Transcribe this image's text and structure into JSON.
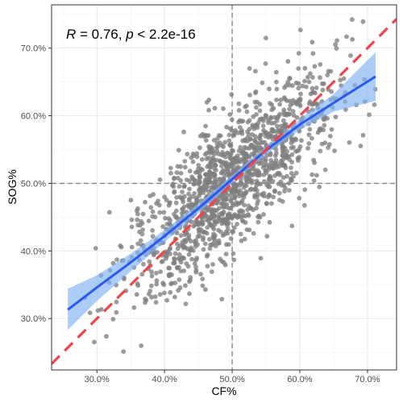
{
  "chart_data": {
    "type": "scatter",
    "xlabel": "CF%",
    "ylabel": "SOG%",
    "xlim": [
      23.3,
      74.3
    ],
    "ylim": [
      22.4,
      76.4
    ],
    "x_ticks": [
      30,
      40,
      50,
      60,
      70
    ],
    "y_ticks": [
      30,
      40,
      50,
      60,
      70
    ],
    "x_tick_labels": [
      "30.0%",
      "40.0%",
      "50.0%",
      "60.0%",
      "70.0%"
    ],
    "y_tick_labels": [
      "30.0%",
      "40.0%",
      "50.0%",
      "60.0%",
      "70.0%"
    ],
    "grid": true,
    "annotation": {
      "r_symbol": "R",
      "r_text": " = 0.76, ",
      "p_symbol": "p",
      "p_text": " < 2.2e-16"
    },
    "reference_lines": {
      "vertical_x": 50,
      "horizontal_y": 50,
      "style": "dashed",
      "color": "#808080"
    },
    "identity_line": {
      "slope": 1,
      "intercept": 0,
      "style": "dashed",
      "color": "#f0444a"
    },
    "points": {
      "color": "#7f7f7f",
      "n_shown": 1400,
      "x_mean": 50,
      "x_sd": 7.5,
      "x_range": [
        25.3,
        71.2
      ],
      "correlation": 0.76
    },
    "smooth": {
      "color": "#2b59f0",
      "band_color": "#7fb2f4",
      "fit": [
        {
          "x": 25.7,
          "y": 31.3
        },
        {
          "x": 30,
          "y": 34.6
        },
        {
          "x": 35,
          "y": 38.3
        },
        {
          "x": 40,
          "y": 42.2
        },
        {
          "x": 45,
          "y": 46.3
        },
        {
          "x": 50,
          "y": 50.6
        },
        {
          "x": 55,
          "y": 54.9
        },
        {
          "x": 60,
          "y": 58.7
        },
        {
          "x": 65,
          "y": 61.9
        },
        {
          "x": 71.2,
          "y": 65.8
        }
      ],
      "band": [
        {
          "x": 25.7,
          "lo": 28.3,
          "hi": 34.4
        },
        {
          "x": 30,
          "lo": 32.6,
          "hi": 36.4
        },
        {
          "x": 35,
          "lo": 37.0,
          "hi": 39.6
        },
        {
          "x": 40,
          "lo": 41.3,
          "hi": 43.1
        },
        {
          "x": 45,
          "lo": 45.6,
          "hi": 47.0
        },
        {
          "x": 50,
          "lo": 50.0,
          "hi": 51.2
        },
        {
          "x": 55,
          "lo": 54.3,
          "hi": 55.5
        },
        {
          "x": 60,
          "lo": 57.9,
          "hi": 59.5
        },
        {
          "x": 65,
          "lo": 60.6,
          "hi": 63.2
        },
        {
          "x": 71.2,
          "lo": 62.2,
          "hi": 69.4
        }
      ]
    }
  }
}
